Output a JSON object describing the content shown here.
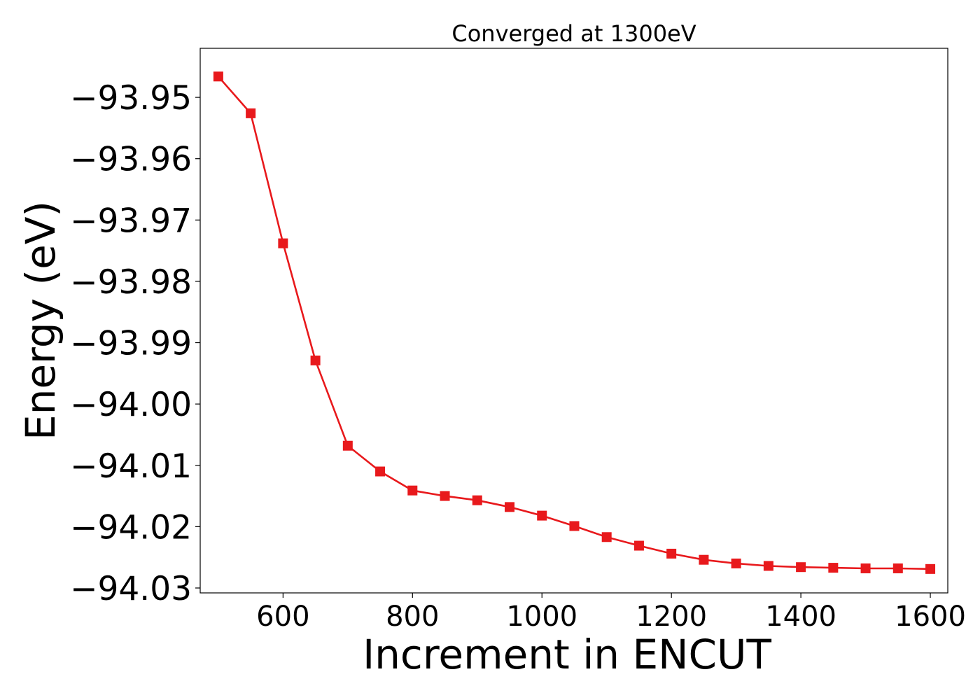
{
  "chart_data": {
    "type": "line",
    "title": "Converged at 1300eV",
    "xlabel": "Increment in ENCUT",
    "ylabel": "Energy (eV)",
    "xlim": [
      472,
      1627
    ],
    "ylim": [
      -94.0308,
      -93.942
    ],
    "xticks": [
      600,
      800,
      1000,
      1200,
      1400,
      1600
    ],
    "yticks": [
      -93.95,
      -93.96,
      -93.97,
      -93.98,
      -93.99,
      -94.0,
      -94.01,
      -94.02,
      -94.03
    ],
    "ytick_labels": [
      "−93.95",
      "−93.96",
      "−93.97",
      "−93.98",
      "−93.99",
      "−94.00",
      "−94.01",
      "−94.02",
      "−94.03"
    ],
    "grid": false,
    "series": [
      {
        "color": "#e8191c",
        "marker": "square",
        "x": [
          500,
          550,
          600,
          650,
          700,
          750,
          800,
          850,
          900,
          950,
          1000,
          1050,
          1100,
          1150,
          1200,
          1250,
          1300,
          1350,
          1400,
          1450,
          1500,
          1550,
          1600
        ],
        "y": [
          -93.9466,
          -93.9526,
          -93.9738,
          -93.9929,
          -94.0068,
          -94.011,
          -94.0141,
          -94.015,
          -94.0157,
          -94.0168,
          -94.0182,
          -94.0199,
          -94.0217,
          -94.0231,
          -94.0244,
          -94.0254,
          -94.026,
          -94.0264,
          -94.0266,
          -94.0267,
          -94.0268,
          -94.0268,
          -94.0269
        ]
      }
    ]
  }
}
